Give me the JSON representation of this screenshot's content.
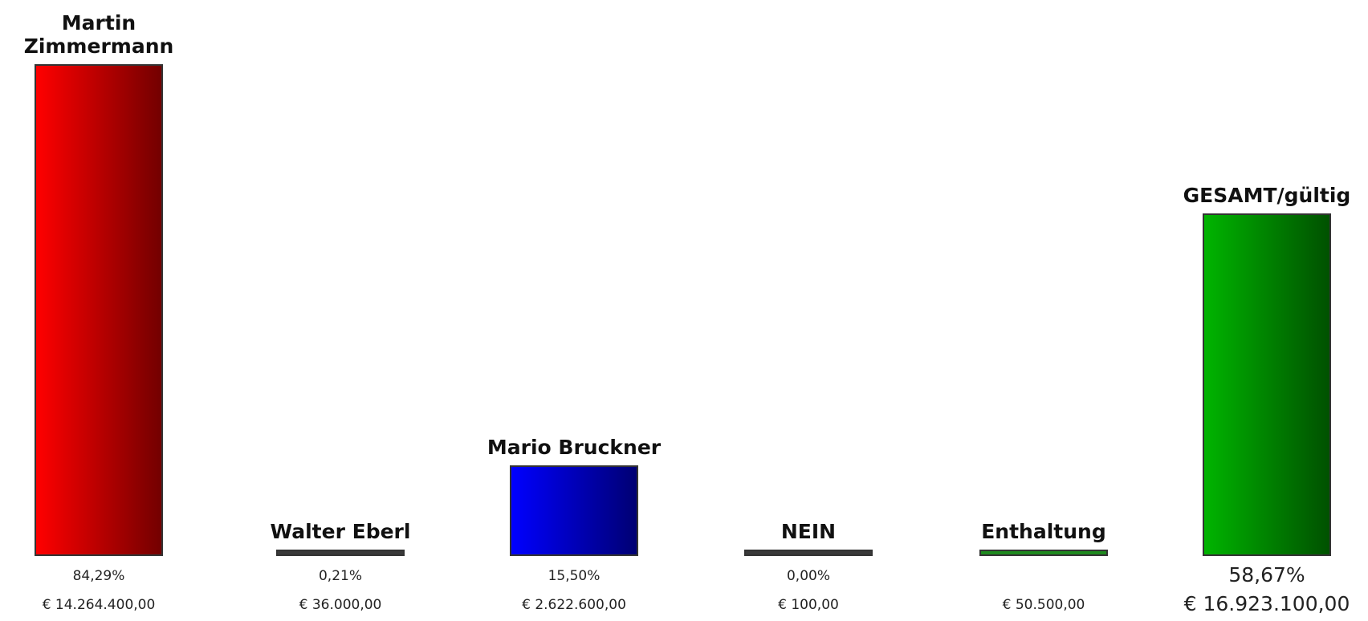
{
  "chart_data": {
    "type": "bar",
    "categories": [
      "Martin Zimmermann",
      "Walter Eberl",
      "Mario Bruckner",
      "NEIN",
      "Enthaltung",
      "GESAMT/gültig"
    ],
    "values": [
      84.29,
      0.21,
      15.5,
      0.0,
      0.3,
      58.67
    ],
    "value_labels": [
      "84,29%",
      "0,21%",
      "15,50%",
      "0,00%",
      null,
      "58,67%"
    ],
    "amounts": [
      14264400,
      36000,
      2622600,
      100,
      50500,
      16923100
    ],
    "amount_labels": [
      "€ 14.264.400,00",
      "€ 36.000,00",
      "€ 2.622.600,00",
      "€ 100,00",
      "€ 50.500,00",
      "€ 16.923.100,00"
    ],
    "colors": [
      "#ff0000",
      "#3a3a3a",
      "#0000ff",
      "#3a3a3a",
      "#1f8a1f",
      "#00b400"
    ],
    "ylim": [
      0,
      90
    ]
  }
}
